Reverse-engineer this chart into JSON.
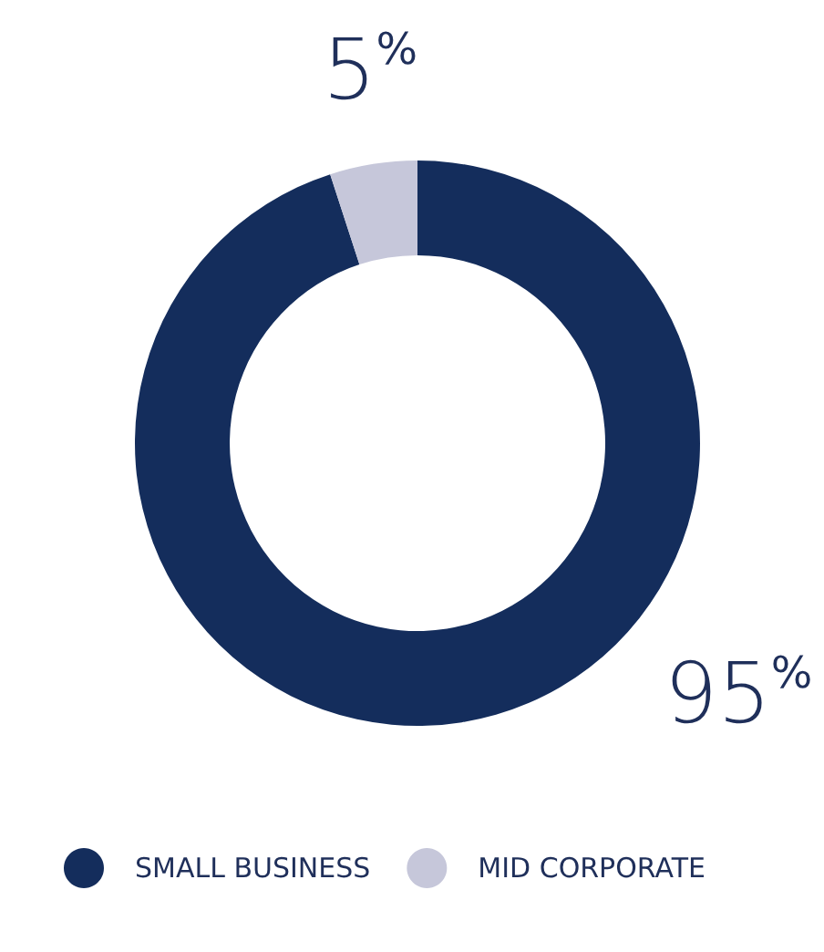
{
  "chart_data": {
    "type": "donut",
    "categories": [
      "SMALL BUSINESS",
      "MID CORPORATE"
    ],
    "values": [
      95,
      5
    ],
    "colors": [
      "#142d5c",
      "#c6c7da"
    ],
    "value_labels": [
      "95%",
      "5%"
    ],
    "legend": "bottom left"
  }
}
